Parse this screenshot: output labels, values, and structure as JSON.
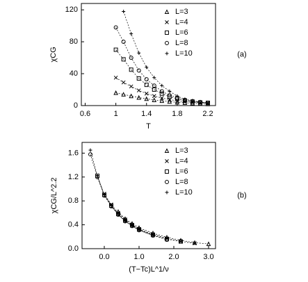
{
  "chart_data": [
    {
      "type": "scatter",
      "annotation": "(a)",
      "xlabel": "T",
      "ylabel": "χCG",
      "x": [
        1.0,
        1.1,
        1.2,
        1.3,
        1.4,
        1.5,
        1.6,
        1.7,
        1.8,
        1.9,
        2.0,
        2.1,
        2.2
      ],
      "xlim": [
        0.55,
        2.3
      ],
      "xticks": [
        0.6,
        1.0,
        1.4,
        1.8,
        2.2
      ],
      "ylim": [
        0,
        128
      ],
      "yticks": [
        0,
        40,
        80,
        120
      ],
      "series": [
        {
          "name": "L=3",
          "color": "#000000",
          "marker": "triangle",
          "values": [
            16,
            14,
            12,
            10,
            8.5,
            7,
            6,
            5,
            4,
            3.5,
            3,
            2.5,
            2
          ]
        },
        {
          "name": "L=4",
          "color": "#000000",
          "marker": "x",
          "values": [
            35,
            29,
            24,
            19,
            15,
            12,
            9.5,
            7.5,
            6,
            5,
            4,
            3.5,
            3
          ]
        },
        {
          "name": "L=6",
          "color": "#000000",
          "marker": "square",
          "values": [
            70,
            58,
            45,
            34,
            26,
            20,
            15,
            11,
            8.5,
            6.5,
            5,
            4,
            3.5
          ]
        },
        {
          "name": "L=8",
          "color": "#000000",
          "marker": "circle",
          "values": [
            98,
            80,
            60,
            44,
            33,
            25,
            18,
            13,
            10,
            7,
            5.5,
            4.5,
            3.5
          ]
        },
        {
          "name": "L=10",
          "color": "#000000",
          "marker": "plus",
          "values": [
            null,
            118,
            90,
            66,
            48,
            35,
            25,
            18,
            12,
            8,
            6,
            4.5,
            3.5
          ]
        }
      ]
    },
    {
      "type": "scatter",
      "annotation": "(b)",
      "xlabel": "(T−Tc)L^1/ν",
      "ylabel": "χCG/L^2.2",
      "x": [
        -0.4,
        -0.2,
        0,
        0.2,
        0.4,
        0.6,
        0.8,
        1.0,
        1.4,
        1.8,
        2.2,
        2.6,
        3.0
      ],
      "xlim": [
        -0.64,
        3.2
      ],
      "xticks": [
        {
          "value": 0,
          "label": "0.0"
        },
        {
          "value": 1,
          "label": "1.0"
        },
        {
          "value": 2,
          "label": "2.0"
        },
        {
          "value": 3,
          "label": "3.0"
        }
      ],
      "ylim": [
        0,
        1.78
      ],
      "yticks": [
        {
          "value": 0,
          "label": "0.0"
        },
        0.4,
        0.8,
        1.2,
        1.6
      ],
      "series": [
        {
          "name": "L=3",
          "color": "#000000",
          "marker": "triangle",
          "values": [
            null,
            null,
            null,
            null,
            0.62,
            0.5,
            0.42,
            0.35,
            0.26,
            0.19,
            0.14,
            0.1,
            0.08
          ]
        },
        {
          "name": "L=4",
          "color": "#000000",
          "marker": "x",
          "values": [
            null,
            null,
            0.92,
            0.74,
            0.6,
            0.49,
            0.4,
            0.33,
            0.24,
            0.17,
            0.12,
            0.09,
            null
          ]
        },
        {
          "name": "L=6",
          "color": "#000000",
          "marker": "square",
          "values": [
            null,
            1.22,
            0.9,
            0.72,
            0.58,
            0.47,
            0.39,
            0.32,
            0.23,
            0.16,
            0.12,
            null,
            null
          ]
        },
        {
          "name": "L=8",
          "color": "#000000",
          "marker": "circle",
          "values": [
            1.58,
            1.2,
            0.89,
            0.71,
            0.57,
            0.46,
            0.38,
            0.31,
            0.22,
            0.15,
            null,
            null,
            null
          ]
        },
        {
          "name": "L=10",
          "color": "#000000",
          "marker": "plus",
          "values": [
            1.65,
            1.22,
            0.9,
            0.72,
            0.57,
            0.46,
            0.38,
            0.31,
            0.22,
            null,
            null,
            null,
            null
          ]
        }
      ]
    }
  ]
}
